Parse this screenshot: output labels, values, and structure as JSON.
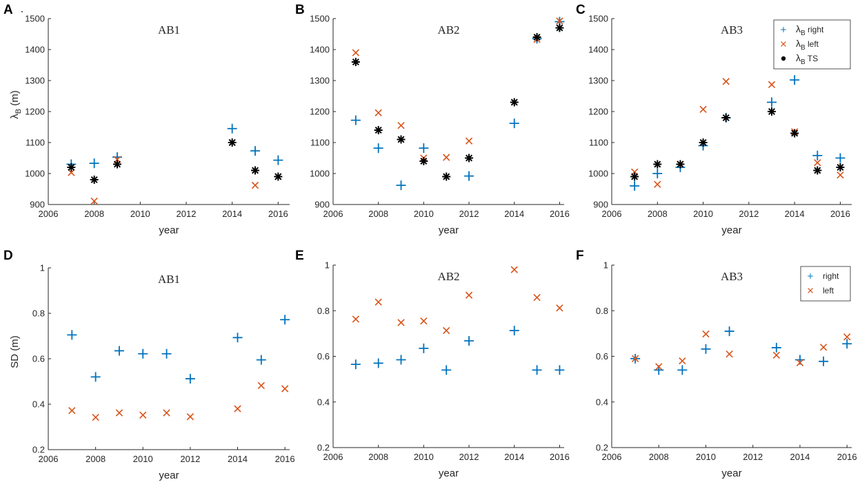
{
  "colors": {
    "right": "#0072BD",
    "left": "#D95319",
    "ts": "#000000"
  },
  "chart_data": [
    {
      "letter": "A",
      "type": "scatter",
      "title": "AB1",
      "xlabel": "year",
      "ylabel": "λB (m)",
      "xlim": [
        2006,
        2016.5
      ],
      "ylim": [
        900,
        1500
      ],
      "xticks": [
        2006,
        2008,
        2010,
        2012,
        2014,
        2016
      ],
      "yticks": [
        900,
        1000,
        1100,
        1200,
        1300,
        1400,
        1500
      ],
      "series": [
        {
          "name": "right",
          "marker": "plus",
          "color": "#0072BD",
          "x": [
            2007,
            2008,
            2009,
            2014,
            2015,
            2016
          ],
          "y": [
            1030,
            1033,
            1053,
            1145,
            1073,
            1043
          ]
        },
        {
          "name": "left",
          "marker": "x",
          "color": "#D95319",
          "x": [
            2007,
            2008,
            2009,
            2014,
            2015,
            2016
          ],
          "y": [
            1003,
            911,
            1045,
            1100,
            962,
            990
          ]
        },
        {
          "name": "TS",
          "marker": "star",
          "color": "#000000",
          "x": [
            2007,
            2008,
            2009,
            2014,
            2015,
            2016
          ],
          "y": [
            1020,
            980,
            1030,
            1100,
            1010,
            990
          ]
        }
      ]
    },
    {
      "letter": "B",
      "type": "scatter",
      "title": "AB2",
      "xlabel": "year",
      "ylabel": "",
      "xlim": [
        2006,
        2016.2
      ],
      "ylim": [
        900,
        1500
      ],
      "xticks": [
        2006,
        2008,
        2010,
        2012,
        2014,
        2016
      ],
      "yticks": [
        900,
        1000,
        1100,
        1200,
        1300,
        1400,
        1500
      ],
      "series": [
        {
          "name": "right",
          "marker": "plus",
          "color": "#0072BD",
          "x": [
            2007,
            2008,
            2009,
            2010,
            2012,
            2014,
            2015,
            2016
          ],
          "y": [
            1172,
            1082,
            962,
            1082,
            992,
            1162,
            1435,
            1490
          ]
        },
        {
          "name": "left",
          "marker": "x",
          "color": "#D95319",
          "x": [
            2007,
            2008,
            2009,
            2010,
            2011,
            2012,
            2015,
            2016
          ],
          "y": [
            1390,
            1196,
            1155,
            1050,
            1052,
            1105,
            1433,
            1492
          ]
        },
        {
          "name": "TS",
          "marker": "star",
          "color": "#000000",
          "x": [
            2007,
            2008,
            2009,
            2010,
            2011,
            2012,
            2014,
            2015,
            2016
          ],
          "y": [
            1360,
            1140,
            1110,
            1040,
            990,
            1050,
            1230,
            1440,
            1470
          ]
        }
      ]
    },
    {
      "letter": "C",
      "type": "scatter",
      "title": "AB3",
      "xlabel": "year",
      "ylabel": "",
      "xlim": [
        2006,
        2016.5
      ],
      "ylim": [
        900,
        1500
      ],
      "xticks": [
        2006,
        2008,
        2010,
        2012,
        2014,
        2016
      ],
      "yticks": [
        900,
        1000,
        1100,
        1200,
        1300,
        1400,
        1500
      ],
      "legend": {
        "items": [
          {
            "symbol": "λ",
            "sub": "B",
            "label": "right"
          },
          {
            "symbol": "λ",
            "sub": "B",
            "label": "left"
          },
          {
            "symbol": "λ",
            "sub": "B",
            "label": "TS"
          }
        ]
      },
      "series": [
        {
          "name": "right",
          "marker": "plus",
          "color": "#0072BD",
          "x": [
            2007,
            2008,
            2009,
            2010,
            2011,
            2013,
            2014,
            2015,
            2016
          ],
          "y": [
            960,
            1000,
            1020,
            1090,
            1180,
            1230,
            1302,
            1058,
            1050
          ]
        },
        {
          "name": "left",
          "marker": "x",
          "color": "#D95319",
          "x": [
            2007,
            2008,
            2009,
            2010,
            2011,
            2013,
            2014,
            2015,
            2016
          ],
          "y": [
            1005,
            965,
            1030,
            1207,
            1297,
            1287,
            1135,
            1035,
            995
          ]
        },
        {
          "name": "TS",
          "marker": "star",
          "color": "#000000",
          "x": [
            2007,
            2008,
            2009,
            2010,
            2011,
            2013,
            2014,
            2015,
            2016
          ],
          "y": [
            990,
            1030,
            1030,
            1100,
            1180,
            1200,
            1130,
            1010,
            1020
          ]
        }
      ]
    },
    {
      "letter": "D",
      "type": "scatter",
      "title": "AB1",
      "xlabel": "year",
      "ylabel": "SD (m)",
      "xlim": [
        2006,
        2016.2
      ],
      "ylim": [
        0.2,
        1.0
      ],
      "xticks": [
        2006,
        2008,
        2010,
        2012,
        2014,
        2016
      ],
      "yticks": [
        0.2,
        0.4,
        0.6,
        0.8,
        1
      ],
      "series": [
        {
          "name": "right",
          "marker": "plus",
          "color": "#0072BD",
          "x": [
            2007,
            2008,
            2009,
            2010,
            2011,
            2012,
            2014,
            2015,
            2016
          ],
          "y": [
            0.705,
            0.52,
            0.635,
            0.622,
            0.622,
            0.512,
            0.693,
            0.595,
            0.772
          ]
        },
        {
          "name": "left",
          "marker": "x",
          "color": "#D95319",
          "x": [
            2007,
            2008,
            2009,
            2010,
            2011,
            2012,
            2014,
            2015,
            2016
          ],
          "y": [
            0.372,
            0.342,
            0.362,
            0.352,
            0.362,
            0.345,
            0.38,
            0.482,
            0.468
          ]
        }
      ]
    },
    {
      "letter": "E",
      "type": "scatter",
      "title": "AB2",
      "xlabel": "year",
      "ylabel": "",
      "xlim": [
        2006,
        2016.2
      ],
      "ylim": [
        0.2,
        1.0
      ],
      "xticks": [
        2006,
        2008,
        2010,
        2012,
        2014,
        2016
      ],
      "yticks": [
        0.2,
        0.4,
        0.6,
        0.8,
        1
      ],
      "series": [
        {
          "name": "right",
          "marker": "plus",
          "color": "#0072BD",
          "x": [
            2007,
            2008,
            2009,
            2010,
            2011,
            2012,
            2014,
            2015,
            2016
          ],
          "y": [
            0.565,
            0.57,
            0.585,
            0.635,
            0.54,
            0.668,
            0.713,
            0.54,
            0.54
          ]
        },
        {
          "name": "left",
          "marker": "x",
          "color": "#D95319",
          "x": [
            2007,
            2008,
            2009,
            2010,
            2011,
            2012,
            2014,
            2015,
            2016
          ],
          "y": [
            0.763,
            0.838,
            0.748,
            0.755,
            0.713,
            0.868,
            0.98,
            0.858,
            0.812
          ]
        }
      ]
    },
    {
      "letter": "F",
      "type": "scatter",
      "title": "AB3",
      "xlabel": "year",
      "ylabel": "",
      "xlim": [
        2006,
        2016.2
      ],
      "ylim": [
        0.2,
        1.0
      ],
      "xticks": [
        2006,
        2008,
        2010,
        2012,
        2014,
        2016
      ],
      "yticks": [
        0.2,
        0.4,
        0.6,
        0.8,
        1
      ],
      "legend": {
        "items": [
          {
            "symbol": "",
            "sub": "",
            "label": "right"
          },
          {
            "symbol": "",
            "sub": "",
            "label": "left"
          }
        ]
      },
      "series": [
        {
          "name": "right",
          "marker": "plus",
          "color": "#0072BD",
          "x": [
            2007,
            2008,
            2009,
            2010,
            2011,
            2013,
            2014,
            2015,
            2016
          ],
          "y": [
            0.59,
            0.54,
            0.54,
            0.632,
            0.71,
            0.638,
            0.585,
            0.578,
            0.655
          ]
        },
        {
          "name": "left",
          "marker": "x",
          "color": "#D95319",
          "x": [
            2007,
            2008,
            2009,
            2010,
            2011,
            2013,
            2014,
            2015,
            2016
          ],
          "y": [
            0.59,
            0.555,
            0.58,
            0.698,
            0.61,
            0.605,
            0.572,
            0.64,
            0.685
          ]
        }
      ]
    }
  ]
}
